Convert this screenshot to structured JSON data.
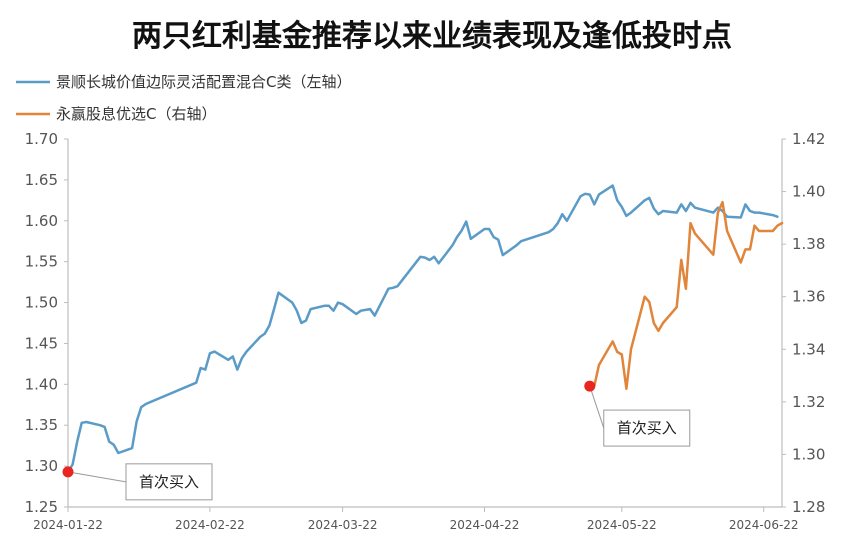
{
  "chart_data": {
    "type": "line",
    "title": "两只红利基金推荐以来业绩表现及逢低投时点",
    "legend_placement": "top-left",
    "grid": false,
    "x_ticks": [
      "2024-01-22",
      "2024-02-22",
      "2024-03-22",
      "2024-04-22",
      "2024-05-22",
      "2024-06-22"
    ],
    "xlim": [
      "2024-01-22",
      "2024-06-26"
    ],
    "y_left": {
      "lim": [
        1.25,
        1.7
      ],
      "ticks": [
        "1.25",
        "1.30",
        "1.35",
        "1.40",
        "1.45",
        "1.50",
        "1.55",
        "1.60",
        "1.65",
        "1.70"
      ]
    },
    "y_right": {
      "lim": [
        1.28,
        1.42
      ],
      "ticks": [
        "1.28",
        "1.30",
        "1.32",
        "1.34",
        "1.36",
        "1.38",
        "1.40",
        "1.42"
      ]
    },
    "series": [
      {
        "name": "景顺长城价值边际灵活配置混合C类（左轴）",
        "axis": "left",
        "color": "#5b9bc8",
        "points": [
          [
            "2024-01-22",
            1.293
          ],
          [
            "2024-01-23",
            1.302
          ],
          [
            "2024-01-24",
            1.33
          ],
          [
            "2024-01-25",
            1.353
          ],
          [
            "2024-01-26",
            1.354
          ],
          [
            "2024-01-29",
            1.35
          ],
          [
            "2024-01-30",
            1.348
          ],
          [
            "2024-01-31",
            1.33
          ],
          [
            "2024-02-01",
            1.326
          ],
          [
            "2024-02-02",
            1.316
          ],
          [
            "2024-02-05",
            1.322
          ],
          [
            "2024-02-06",
            1.355
          ],
          [
            "2024-02-07",
            1.372
          ],
          [
            "2024-02-08",
            1.376
          ],
          [
            "2024-02-19",
            1.402
          ],
          [
            "2024-02-20",
            1.42
          ],
          [
            "2024-02-21",
            1.418
          ],
          [
            "2024-02-22",
            1.438
          ],
          [
            "2024-02-23",
            1.44
          ],
          [
            "2024-02-26",
            1.43
          ],
          [
            "2024-02-27",
            1.434
          ],
          [
            "2024-02-28",
            1.418
          ],
          [
            "2024-02-29",
            1.432
          ],
          [
            "2024-03-01",
            1.44
          ],
          [
            "2024-03-04",
            1.458
          ],
          [
            "2024-03-05",
            1.462
          ],
          [
            "2024-03-06",
            1.472
          ],
          [
            "2024-03-07",
            1.492
          ],
          [
            "2024-03-08",
            1.512
          ],
          [
            "2024-03-11",
            1.5
          ],
          [
            "2024-03-12",
            1.49
          ],
          [
            "2024-03-13",
            1.475
          ],
          [
            "2024-03-14",
            1.478
          ],
          [
            "2024-03-15",
            1.492
          ],
          [
            "2024-03-18",
            1.496
          ],
          [
            "2024-03-19",
            1.496
          ],
          [
            "2024-03-20",
            1.49
          ],
          [
            "2024-03-21",
            1.5
          ],
          [
            "2024-03-22",
            1.498
          ],
          [
            "2024-03-25",
            1.486
          ],
          [
            "2024-03-26",
            1.49
          ],
          [
            "2024-03-27",
            1.491
          ],
          [
            "2024-03-28",
            1.492
          ],
          [
            "2024-03-29",
            1.484
          ],
          [
            "2024-04-01",
            1.517
          ],
          [
            "2024-04-02",
            1.518
          ],
          [
            "2024-04-03",
            1.52
          ],
          [
            "2024-04-08",
            1.556
          ],
          [
            "2024-04-09",
            1.555
          ],
          [
            "2024-04-10",
            1.552
          ],
          [
            "2024-04-11",
            1.556
          ],
          [
            "2024-04-12",
            1.548
          ],
          [
            "2024-04-15",
            1.57
          ],
          [
            "2024-04-16",
            1.58
          ],
          [
            "2024-04-17",
            1.588
          ],
          [
            "2024-04-18",
            1.599
          ],
          [
            "2024-04-19",
            1.578
          ],
          [
            "2024-04-22",
            1.59
          ],
          [
            "2024-04-23",
            1.59
          ],
          [
            "2024-04-24",
            1.58
          ],
          [
            "2024-04-25",
            1.577
          ],
          [
            "2024-04-26",
            1.558
          ],
          [
            "2024-04-29",
            1.57
          ],
          [
            "2024-04-30",
            1.575
          ],
          [
            "2024-05-06",
            1.586
          ],
          [
            "2024-05-07",
            1.59
          ],
          [
            "2024-05-08",
            1.597
          ],
          [
            "2024-05-09",
            1.608
          ],
          [
            "2024-05-10",
            1.6
          ],
          [
            "2024-05-13",
            1.63
          ],
          [
            "2024-05-14",
            1.633
          ],
          [
            "2024-05-15",
            1.632
          ],
          [
            "2024-05-16",
            1.62
          ],
          [
            "2024-05-17",
            1.632
          ],
          [
            "2024-05-20",
            1.643
          ],
          [
            "2024-05-21",
            1.625
          ],
          [
            "2024-05-22",
            1.617
          ],
          [
            "2024-05-23",
            1.606
          ],
          [
            "2024-05-24",
            1.61
          ],
          [
            "2024-05-27",
            1.625
          ],
          [
            "2024-05-28",
            1.628
          ],
          [
            "2024-05-29",
            1.615
          ],
          [
            "2024-05-30",
            1.608
          ],
          [
            "2024-05-31",
            1.612
          ],
          [
            "2024-06-03",
            1.61
          ],
          [
            "2024-06-04",
            1.62
          ],
          [
            "2024-06-05",
            1.612
          ],
          [
            "2024-06-06",
            1.622
          ],
          [
            "2024-06-07",
            1.616
          ],
          [
            "2024-06-11",
            1.61
          ],
          [
            "2024-06-12",
            1.616
          ],
          [
            "2024-06-13",
            1.612
          ],
          [
            "2024-06-14",
            1.605
          ],
          [
            "2024-06-17",
            1.604
          ],
          [
            "2024-06-18",
            1.62
          ],
          [
            "2024-06-19",
            1.612
          ],
          [
            "2024-06-20",
            1.61
          ],
          [
            "2024-06-21",
            1.61
          ],
          [
            "2024-06-24",
            1.607
          ],
          [
            "2024-06-25",
            1.605
          ]
        ]
      },
      {
        "name": "永赢股息优选C（右轴）",
        "axis": "right",
        "color": "#e0853a",
        "points": [
          [
            "2024-05-16",
            1.326
          ],
          [
            "2024-05-17",
            1.334
          ],
          [
            "2024-05-20",
            1.343
          ],
          [
            "2024-05-21",
            1.339
          ],
          [
            "2024-05-22",
            1.338
          ],
          [
            "2024-05-23",
            1.325
          ],
          [
            "2024-05-24",
            1.34
          ],
          [
            "2024-05-27",
            1.36
          ],
          [
            "2024-05-28",
            1.358
          ],
          [
            "2024-05-29",
            1.35
          ],
          [
            "2024-05-30",
            1.347
          ],
          [
            "2024-05-31",
            1.35
          ],
          [
            "2024-06-03",
            1.356
          ],
          [
            "2024-06-04",
            1.374
          ],
          [
            "2024-06-05",
            1.363
          ],
          [
            "2024-06-06",
            1.388
          ],
          [
            "2024-06-07",
            1.384
          ],
          [
            "2024-06-11",
            1.376
          ],
          [
            "2024-06-12",
            1.392
          ],
          [
            "2024-06-13",
            1.396
          ],
          [
            "2024-06-14",
            1.385
          ],
          [
            "2024-06-17",
            1.373
          ],
          [
            "2024-06-18",
            1.378
          ],
          [
            "2024-06-19",
            1.378
          ],
          [
            "2024-06-20",
            1.387
          ],
          [
            "2024-06-21",
            1.385
          ],
          [
            "2024-06-24",
            1.385
          ],
          [
            "2024-06-25",
            1.387
          ],
          [
            "2024-06-26",
            1.388
          ]
        ]
      }
    ],
    "annotations": [
      {
        "text": "首次买入",
        "series": 0,
        "x": "2024-01-22",
        "y": 1.293
      },
      {
        "text": "首次买入",
        "series": 1,
        "x": "2024-05-15",
        "y": 1.326
      }
    ]
  }
}
